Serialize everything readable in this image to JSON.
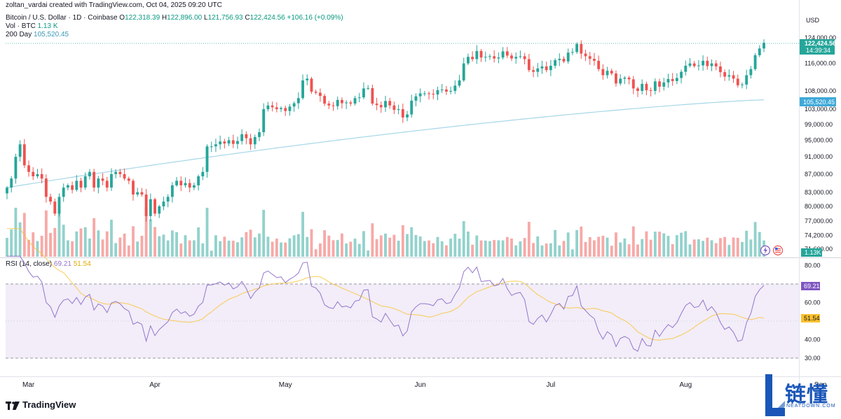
{
  "author_line": "zoltan_vardai created with TradingView.com, Oct 04, 2025 09:20 UTC",
  "symbol_line": {
    "name": "Bitcoin / U.S. Dollar · 1D · Coinbase",
    "open_label": "O",
    "open": "122,318.39",
    "high_label": "H",
    "high": "122,896.00",
    "low_label": "L",
    "low": "121,756.93",
    "close_label": "C",
    "close": "122,424.56",
    "change": "+106.16 (+0.09%)"
  },
  "vol_line": {
    "label": "Vol · BTC",
    "value": "1.13 K"
  },
  "ma_line": {
    "label": "200 Day",
    "value": "105,520.45"
  },
  "currency": "USD",
  "price_badge": {
    "value": "122,424.56",
    "countdown": "14:39:34"
  },
  "ma_badge": "105,520.45",
  "vol_badge": "1.13K",
  "rsi_line": {
    "label": "RSI (14, close)",
    "value": "69.21",
    "ma_value": "51.54"
  },
  "rsi_badge": "69.21",
  "rsi_ma_badge": "51.54",
  "tv_logo": "TradingView",
  "watermark": {
    "cn": "链懂",
    "en": "NEATDOWN.COM"
  },
  "colors": {
    "up": "#26a69a",
    "down": "#ef5350",
    "vol_up": "#92d2cc",
    "vol_down": "#f7a9a7",
    "ma": "#a5d7e8",
    "rsi": "#9575cd",
    "rsi_ma": "#fbc02d"
  },
  "chart_data": {
    "type": "candlestick",
    "price_axis_ticks": [
      "124,000.00",
      "116,000.00",
      "108,000.00",
      "103,000.00",
      "99,000.00",
      "95,000.00",
      "91,000.00",
      "87,000.00",
      "83,000.00",
      "80,000.00",
      "77,000.00",
      "74,200.00",
      "71,600.00"
    ],
    "rsi_axis_ticks": [
      "80.00",
      "60.00",
      "40.00",
      "30.00"
    ],
    "x_labels": [
      "Mar",
      "Apr",
      "May",
      "Jun",
      "Jul",
      "Aug",
      "Sep",
      "Oc"
    ],
    "x_label_dates": [
      "2025-03-01",
      "2025-04-01",
      "2025-05-01",
      "2025-06-01",
      "2025-07-01",
      "2025-08-01",
      "2025-09-01",
      "2025-10-01"
    ],
    "start_date": "2025-02-26",
    "closes": [
      84000,
      86000,
      91000,
      94000,
      89000,
      87500,
      86500,
      87000,
      86000,
      82000,
      81000,
      78500,
      82000,
      84000,
      84500,
      83500,
      85500,
      84000,
      86500,
      87500,
      84000,
      86000,
      85500,
      84000,
      87000,
      87500,
      87000,
      86000,
      85500,
      82500,
      83000,
      82500,
      78000,
      81500,
      78500,
      80000,
      81000,
      82000,
      84500,
      85500,
      84500,
      85000,
      84000,
      84500,
      86500,
      87500,
      93500,
      93500,
      94000,
      94700,
      94200,
      95000,
      94100,
      94800,
      96500,
      95500,
      94000,
      95800,
      97000,
      103000,
      104000,
      103500,
      103000,
      103300,
      102500,
      103700,
      104600,
      106000,
      111000,
      111500,
      107800,
      107500,
      106600,
      104500,
      104000,
      103800,
      105500,
      104600,
      104800,
      104500,
      106000,
      106200,
      108700,
      108800,
      104500,
      104100,
      103500,
      105200,
      104000,
      102800,
      103000,
      100800,
      101600,
      105300,
      106500,
      107300,
      107300,
      107200,
      107000,
      108200,
      108400,
      107800,
      108000,
      109500,
      111000,
      116000,
      118000,
      117300,
      119800,
      117800,
      118000,
      118200,
      117500,
      117800,
      119700,
      118400,
      117500,
      118000,
      118200,
      117300,
      114000,
      113500,
      114500,
      115100,
      114000,
      115300,
      117000,
      117400,
      116600,
      119300,
      119500,
      122000,
      119000,
      118200,
      117400,
      116800,
      114300,
      112500,
      113800,
      113000,
      110100,
      111500,
      111800,
      111300,
      108700,
      108000,
      110000,
      108200,
      108000,
      110700,
      109200,
      110400,
      111400,
      110800,
      111700,
      113500,
      115300,
      116000,
      115200,
      115400,
      116800,
      115200,
      116000,
      115100,
      113400,
      112100,
      112500,
      111500,
      109600,
      109800,
      112500,
      114300,
      118500,
      120600,
      122400
    ],
    "ma200": {
      "name": "200 Day",
      "start": 84000,
      "end": 105520.45,
      "last": "105,520.45"
    },
    "last_close": 122424.56,
    "rsi": {
      "last": 69.21,
      "ma_last": 51.54,
      "upper_band": 70,
      "lower_band": 30,
      "ylim": [
        20,
        85
      ]
    },
    "price_ylim_labels": [
      "71,600.00",
      "124,000.00"
    ]
  }
}
